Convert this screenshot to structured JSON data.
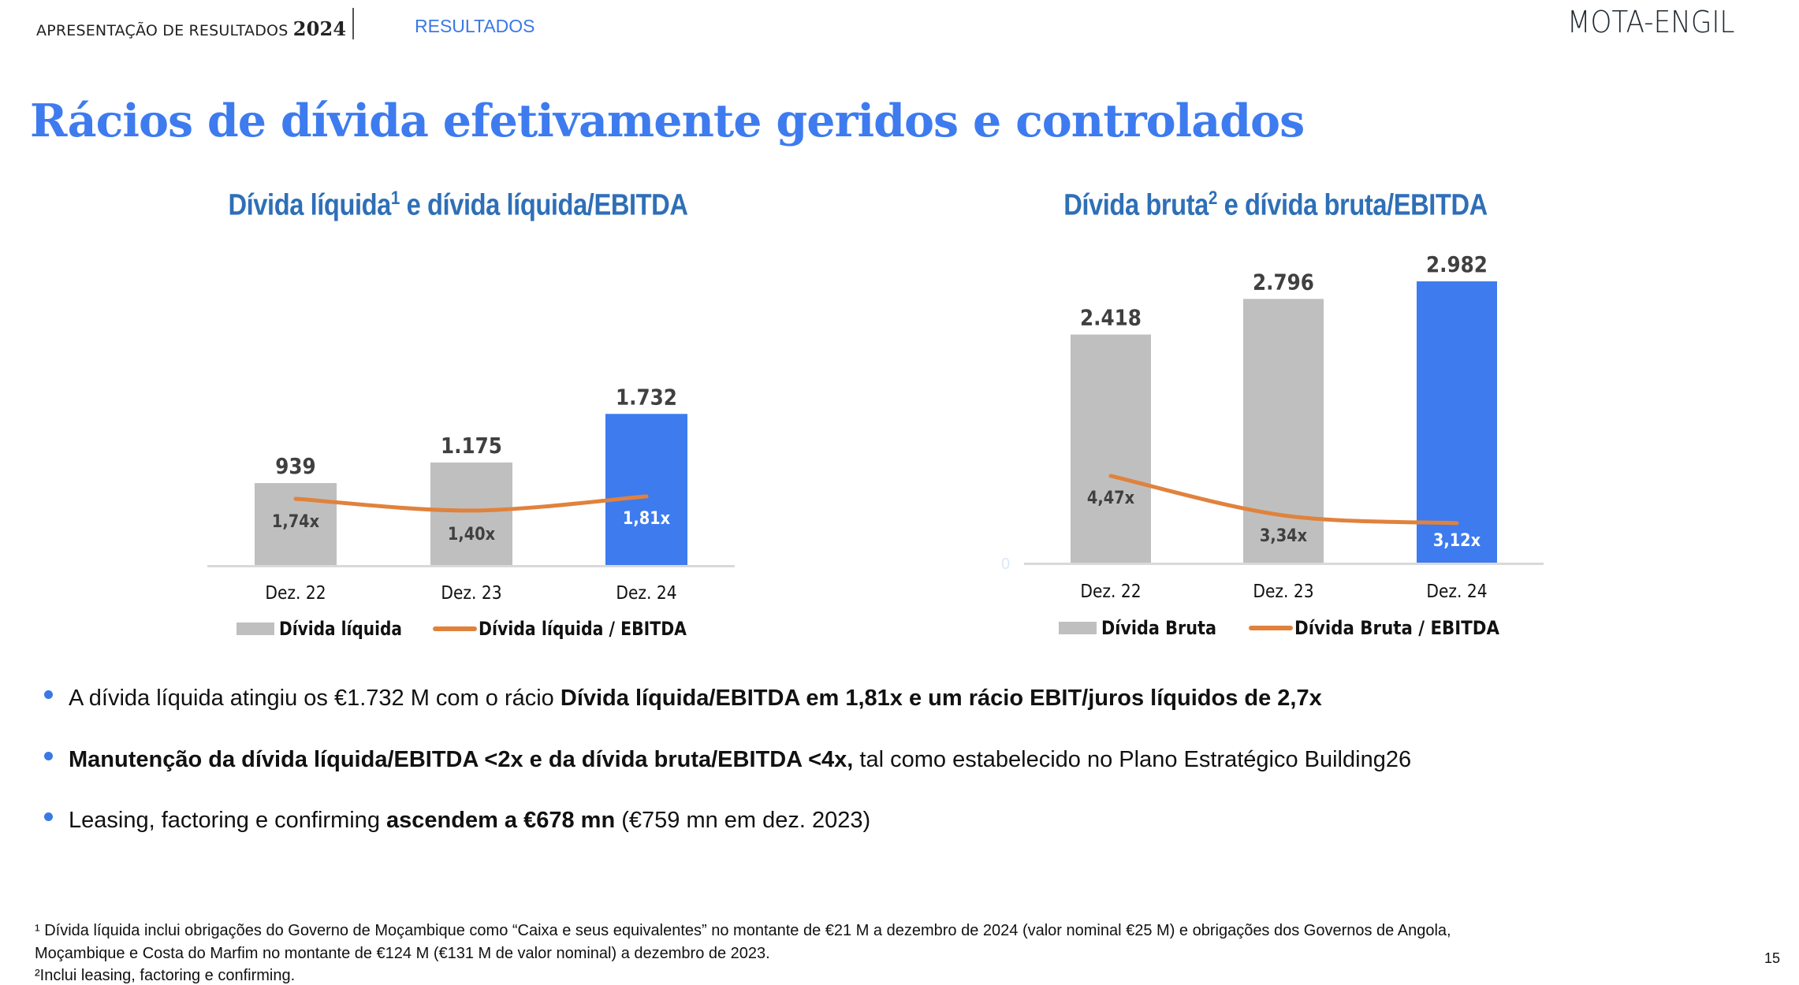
{
  "header": {
    "presentation": "APRESENTAÇÃO DE RESULTADOS",
    "year": "2024",
    "section": "RESULTADOS",
    "logo": "MOTA-ENGIL"
  },
  "title": "Rácios de dívida efetivamente geridos e controlados",
  "chart_data": [
    {
      "type": "bar",
      "title": "Dívida líquida",
      "title_sup": "1",
      "title_rest": " e dívida líquida/EBITDA",
      "categories": [
        "Dez. 22",
        "Dez. 23",
        "Dez. 24"
      ],
      "series": [
        {
          "name": "Dívida líquida",
          "type": "bar",
          "values": [
            939,
            1175,
            1732
          ],
          "labels": [
            "939",
            "1.175",
            "1.732"
          ],
          "colors": [
            "#bfbfbf",
            "#bfbfbf",
            "#3d7bef"
          ]
        },
        {
          "name": "Dívida líquida / EBITDA",
          "type": "line",
          "values": [
            1.74,
            1.4,
            1.81
          ],
          "labels": [
            "1,74x",
            "1,40x",
            "1,81x"
          ],
          "color": "#e0823d"
        }
      ],
      "legend": "bottom",
      "grid": false
    },
    {
      "type": "bar",
      "title": "Dívida bruta",
      "title_sup": "2",
      "title_rest": " e dívida bruta/EBITDA",
      "categories": [
        "Dez. 22",
        "Dez. 23",
        "Dez. 24"
      ],
      "y_tick": "0",
      "series": [
        {
          "name": "Dívida Bruta",
          "type": "bar",
          "values": [
            2418,
            2796,
            2982
          ],
          "labels": [
            "2.418",
            "2.796",
            "2.982"
          ],
          "colors": [
            "#bfbfbf",
            "#bfbfbf",
            "#3d7bef"
          ]
        },
        {
          "name": "Dívida Bruta / EBITDA",
          "type": "line",
          "values": [
            4.47,
            3.34,
            3.12
          ],
          "labels": [
            "4,47x",
            "3,34x",
            "3,12x"
          ],
          "color": "#e0823d"
        }
      ],
      "legend": "bottom",
      "grid": false
    }
  ],
  "bullets": [
    {
      "parts": [
        {
          "t": "A dívida líquida atingiu os €1.732 M com o rácio ",
          "b": false
        },
        {
          "t": "Dívida líquida/EBITDA em 1,81x e um rácio EBIT/juros líquidos de 2,7x",
          "b": true
        }
      ]
    },
    {
      "parts": [
        {
          "t": "Manutenção da dívida líquida/EBITDA <2x e da dívida bruta/EBITDA <4x,",
          "b": true
        },
        {
          "t": " tal como estabelecido no Plano Estratégico Building26",
          "b": false
        }
      ]
    },
    {
      "parts": [
        {
          "t": "Leasing, factoring e confirming ",
          "b": false
        },
        {
          "t": "ascendem a €678 mn",
          "b": true
        },
        {
          "t": " (€759 mn em dez. 2023)",
          "b": false
        }
      ]
    }
  ],
  "footnotes": [
    "¹ Dívida líquida inclui obrigações do Governo de Moçambique como “Caixa e seus equivalentes” no montante de €21 M a dezembro de 2024 (valor nominal €25 M) e obrigações dos Governos de Angola,",
    "Moçambique e Costa do Marfim no montante de €124 M (€131 M de valor nominal) a dezembro de 2023.",
    "²Inclui leasing, factoring e confirming."
  ],
  "page_number": "15",
  "colors": {
    "accent": "#3d7bef",
    "subtitle": "#2e6fb7",
    "bar_grey": "#bfbfbf",
    "line_orange": "#e0823d"
  }
}
